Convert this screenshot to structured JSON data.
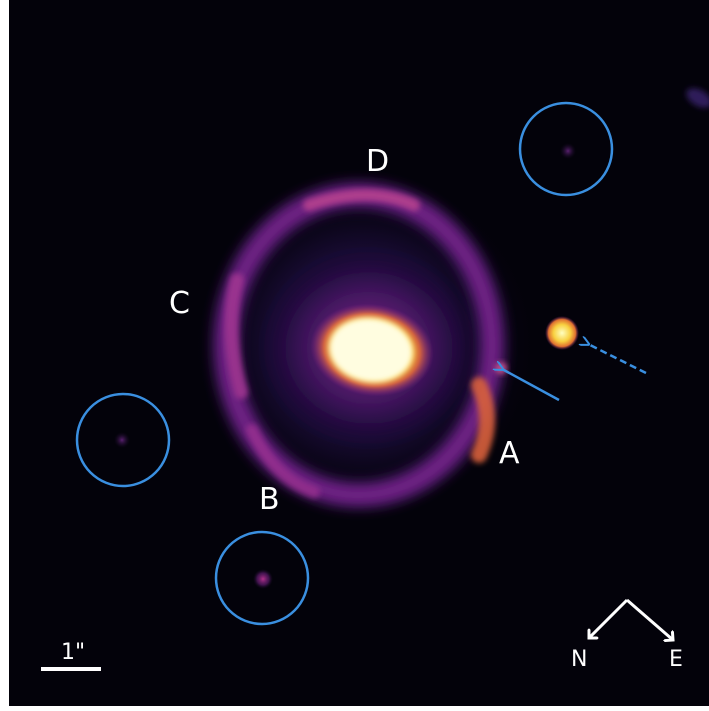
{
  "image": {
    "subject": "astronomical-lens-image",
    "colormap": [
      "#000000",
      "#2a0a4a",
      "#6a1a8a",
      "#b03a8a",
      "#e06a40",
      "#f8c020",
      "#ffffa0"
    ],
    "background_color": "#03020a",
    "marker_color": "#3a8fe0"
  },
  "image_labels": {
    "A": "A",
    "B": "B",
    "C": "C",
    "D": "D"
  },
  "scale_bar": {
    "label": "1\""
  },
  "compass": {
    "north": "N",
    "east": "E"
  }
}
